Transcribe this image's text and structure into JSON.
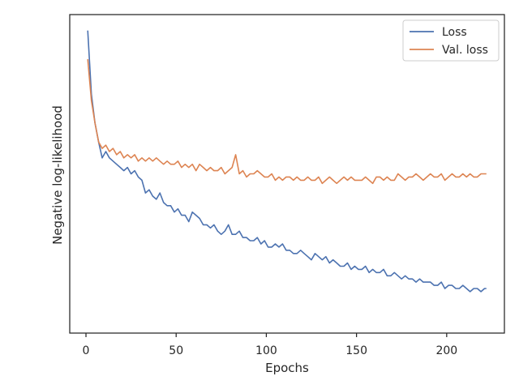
{
  "chart_data": {
    "type": "line",
    "xlabel": "Epochs",
    "ylabel": "Negative log-likelihood",
    "xlim": [
      -9,
      232
    ],
    "ylim": [
      0,
      100
    ],
    "x_ticks": [
      0,
      50,
      100,
      150,
      200
    ],
    "y_ticks_shown": false,
    "grid": false,
    "legend_position": "top-right",
    "series": [
      {
        "name": "Loss",
        "color": "#4c72b0",
        "x": [
          1,
          3,
          5,
          7,
          9,
          11,
          13,
          15,
          17,
          19,
          21,
          23,
          25,
          27,
          29,
          31,
          33,
          35,
          37,
          39,
          41,
          43,
          45,
          47,
          49,
          51,
          53,
          55,
          57,
          59,
          61,
          63,
          65,
          67,
          69,
          71,
          73,
          75,
          77,
          79,
          81,
          83,
          85,
          87,
          89,
          91,
          93,
          95,
          97,
          99,
          101,
          103,
          105,
          107,
          109,
          111,
          113,
          115,
          117,
          119,
          121,
          123,
          125,
          127,
          129,
          131,
          133,
          135,
          137,
          139,
          141,
          143,
          145,
          147,
          149,
          151,
          153,
          155,
          157,
          159,
          161,
          163,
          165,
          167,
          169,
          171,
          173,
          175,
          177,
          179,
          181,
          183,
          185,
          187,
          189,
          191,
          193,
          195,
          197,
          199,
          201,
          203,
          205,
          207,
          209,
          211,
          213,
          215,
          217,
          219,
          221,
          222
        ],
        "y": [
          95,
          75,
          66,
          60,
          55,
          57,
          55,
          54,
          53,
          52,
          51,
          52,
          50,
          51,
          49,
          48,
          44,
          45,
          43,
          42,
          44,
          41,
          40,
          40,
          38,
          39,
          37,
          37,
          35,
          38,
          37,
          36,
          34,
          34,
          33,
          34,
          32,
          31,
          32,
          34,
          31,
          31,
          32,
          30,
          30,
          29,
          29,
          30,
          28,
          29,
          27,
          27,
          28,
          27,
          28,
          26,
          26,
          25,
          25,
          26,
          25,
          24,
          23,
          25,
          24,
          23,
          24,
          22,
          23,
          22,
          21,
          21,
          22,
          20,
          21,
          20,
          20,
          21,
          19,
          20,
          19,
          19,
          20,
          18,
          18,
          19,
          18,
          17,
          18,
          17,
          17,
          16,
          17,
          16,
          16,
          16,
          15,
          15,
          16,
          14,
          15,
          15,
          14,
          14,
          15,
          14,
          13,
          14,
          14,
          13,
          14,
          14
        ]
      },
      {
        "name": "Val. loss",
        "color": "#dd8452",
        "x": [
          1,
          3,
          5,
          7,
          9,
          11,
          13,
          15,
          17,
          19,
          21,
          23,
          25,
          27,
          29,
          31,
          33,
          35,
          37,
          39,
          41,
          43,
          45,
          47,
          49,
          51,
          53,
          55,
          57,
          59,
          61,
          63,
          65,
          67,
          69,
          71,
          73,
          75,
          77,
          79,
          81,
          83,
          85,
          87,
          89,
          91,
          93,
          95,
          97,
          99,
          101,
          103,
          105,
          107,
          109,
          111,
          113,
          115,
          117,
          119,
          121,
          123,
          125,
          127,
          129,
          131,
          133,
          135,
          137,
          139,
          141,
          143,
          145,
          147,
          149,
          151,
          153,
          155,
          157,
          159,
          161,
          163,
          165,
          167,
          169,
          171,
          173,
          175,
          177,
          179,
          181,
          183,
          185,
          187,
          189,
          191,
          193,
          195,
          197,
          199,
          201,
          203,
          205,
          207,
          209,
          211,
          213,
          215,
          217,
          219,
          221,
          222
        ],
        "y": [
          86,
          73,
          66,
          60,
          58,
          59,
          57,
          58,
          56,
          57,
          55,
          56,
          55,
          56,
          54,
          55,
          54,
          55,
          54,
          55,
          54,
          53,
          54,
          53,
          53,
          54,
          52,
          53,
          52,
          53,
          51,
          53,
          52,
          51,
          52,
          51,
          51,
          52,
          50,
          51,
          52,
          56,
          50,
          51,
          49,
          50,
          50,
          51,
          50,
          49,
          49,
          50,
          48,
          49,
          48,
          49,
          49,
          48,
          49,
          48,
          48,
          49,
          48,
          48,
          49,
          47,
          48,
          49,
          48,
          47,
          48,
          49,
          48,
          49,
          48,
          48,
          48,
          49,
          48,
          47,
          49,
          49,
          48,
          49,
          48,
          48,
          50,
          49,
          48,
          49,
          49,
          50,
          49,
          48,
          49,
          50,
          49,
          49,
          50,
          48,
          49,
          50,
          49,
          49,
          50,
          49,
          50,
          49,
          49,
          50,
          50,
          50
        ]
      }
    ]
  }
}
